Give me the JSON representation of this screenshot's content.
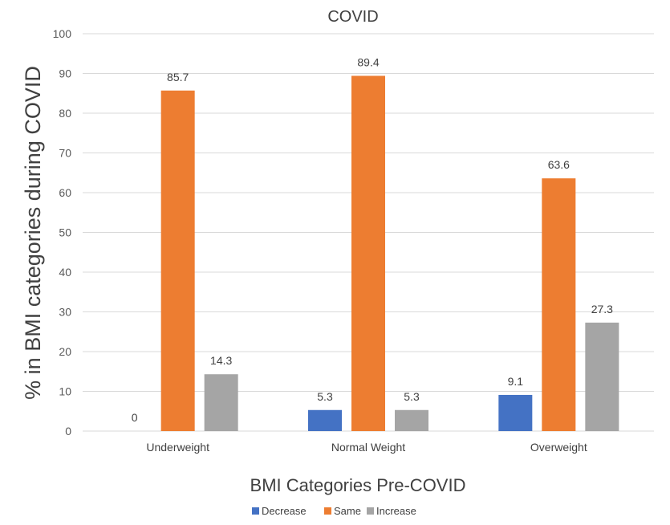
{
  "chart_data": {
    "type": "bar",
    "title": "COVID",
    "xlabel": "BMI Categories Pre-COVID",
    "ylabel": "% in BMI categories during COVID",
    "categories": [
      "Underweight",
      "Normal Weight",
      "Overweight"
    ],
    "series": [
      {
        "name": "Decrease",
        "color": "#4472C4",
        "values": [
          0,
          5.3,
          9.1
        ]
      },
      {
        "name": "Same",
        "color": "#ED7D31",
        "values": [
          85.7,
          89.4,
          63.6
        ]
      },
      {
        "name": "Increase",
        "color": "#A5A5A5",
        "values": [
          14.3,
          5.3,
          27.3
        ]
      }
    ],
    "ylim": [
      0,
      100
    ],
    "yticks": [
      0,
      10,
      20,
      30,
      40,
      50,
      60,
      70,
      80,
      90,
      100
    ],
    "grid": true,
    "legend_position": "bottom"
  }
}
